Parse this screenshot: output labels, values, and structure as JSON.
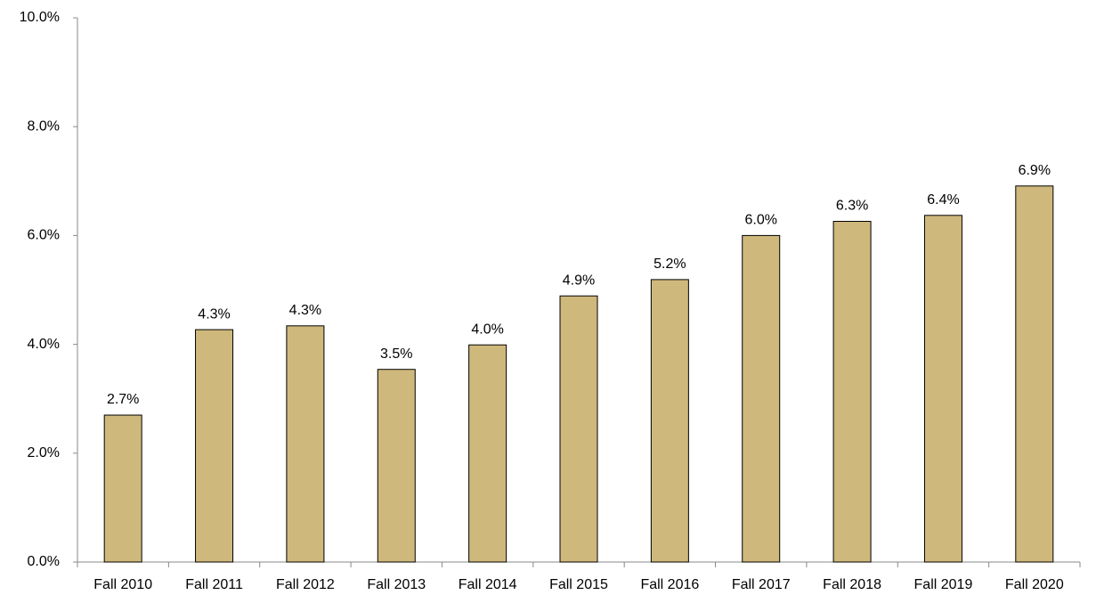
{
  "chart_data": {
    "type": "bar",
    "categories": [
      "Fall 2010",
      "Fall 2011",
      "Fall 2012",
      "Fall 2013",
      "Fall 2014",
      "Fall 2015",
      "Fall 2016",
      "Fall 2017",
      "Fall 2018",
      "Fall 2019",
      "Fall 2020"
    ],
    "values": [
      2.7,
      4.27,
      4.34,
      3.54,
      3.99,
      4.89,
      5.19,
      6.0,
      6.26,
      6.37,
      6.91
    ],
    "value_labels": [
      "2.7%",
      "4.3%",
      "4.3%",
      "3.5%",
      "4.0%",
      "4.9%",
      "5.2%",
      "6.0%",
      "6.3%",
      "6.4%",
      "6.9%"
    ],
    "color": "#cfb87c",
    "ylim": [
      0,
      10
    ],
    "yticks": [
      {
        "value": 0,
        "label": "0.0%"
      },
      {
        "value": 2,
        "label": "2.0%"
      },
      {
        "value": 4,
        "label": "4.0%"
      },
      {
        "value": 6,
        "label": "6.0%"
      },
      {
        "value": 8,
        "label": "8.0%"
      },
      {
        "value": 10,
        "label": "10.0%"
      }
    ],
    "grid": false
  }
}
